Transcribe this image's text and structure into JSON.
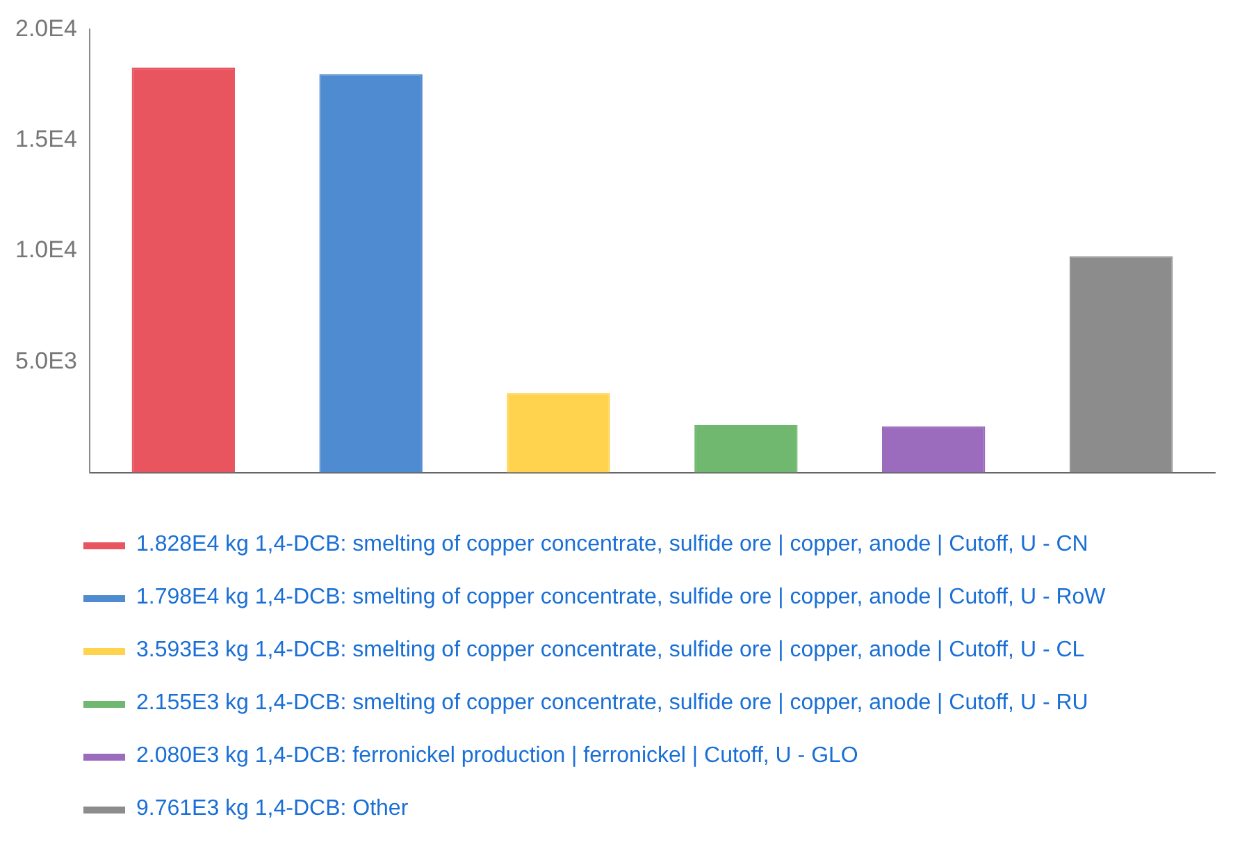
{
  "chart_data": {
    "type": "bar",
    "categories": [
      null,
      null,
      null,
      null,
      null,
      null
    ],
    "series": [
      {
        "name": "1.828E4 kg 1,4-DCB: smelting of copper concentrate, sulfide ore | copper, anode | Cutoff, U - CN",
        "color": "#e8555e",
        "values": [
          18280,
          null,
          null,
          null,
          null,
          null
        ]
      },
      {
        "name": "1.798E4 kg 1,4-DCB: smelting of copper concentrate, sulfide ore | copper, anode | Cutoff, U - RoW",
        "color": "#4f8bd0",
        "values": [
          null,
          17980,
          null,
          null,
          null,
          null
        ]
      },
      {
        "name": "3.593E3 kg 1,4-DCB: smelting of copper concentrate, sulfide ore | copper, anode | Cutoff, U - CL",
        "color": "#ffd34d",
        "values": [
          null,
          null,
          3593,
          null,
          null,
          null
        ]
      },
      {
        "name": "2.155E3 kg 1,4-DCB: smelting of copper concentrate, sulfide ore | copper, anode | Cutoff, U - RU",
        "color": "#70b86f",
        "values": [
          null,
          null,
          null,
          2155,
          null,
          null
        ]
      },
      {
        "name": "2.080E3 kg 1,4-DCB: ferronickel production | ferronickel | Cutoff, U - GLO",
        "color": "#9b6bbd",
        "values": [
          null,
          null,
          null,
          null,
          2080,
          null
        ]
      },
      {
        "name": "9.761E3 kg 1,4-DCB: Other",
        "color": "#8c8c8c",
        "values": [
          null,
          null,
          null,
          null,
          null,
          9761
        ]
      }
    ],
    "ylim": [
      0,
      20000
    ],
    "yticks": [
      {
        "value": 0,
        "label": null
      },
      {
        "value": 5000,
        "label": "5.0E3"
      },
      {
        "value": 10000,
        "label": "1.0E4"
      },
      {
        "value": 15000,
        "label": "1.5E4"
      },
      {
        "value": 20000,
        "label": "2.0E4"
      }
    ],
    "grid": false,
    "legend": "bottom"
  }
}
